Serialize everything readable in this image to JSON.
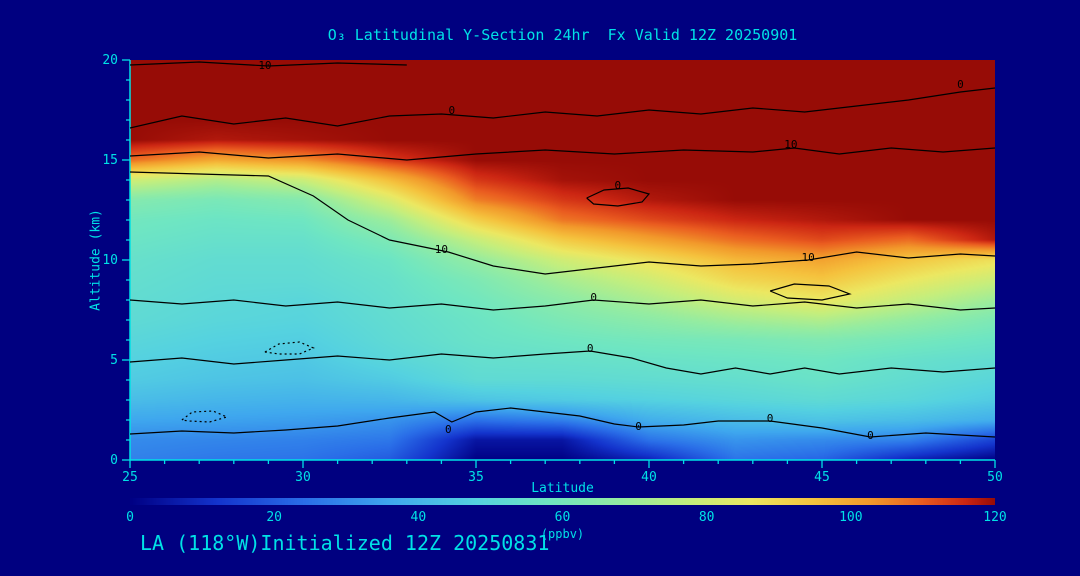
{
  "title": "O₃ Latitudinal Y-Section 24hr  Fx Valid 12Z 20250901",
  "footer": "LA (118°W)Initialized 12Z 20250831",
  "colors": {
    "background": "#000080",
    "axis_text": "#00E1E6",
    "contour_line": "#000000"
  },
  "chart_data": {
    "type": "heatmap",
    "title": "O₃ Latitudinal Y-Section 24hr  Fx Valid 12Z 20250901",
    "xlabel": "Latitude",
    "ylabel": "Altitude (km)",
    "units": "ppbv",
    "x_range": [
      25,
      50
    ],
    "y_range": [
      0,
      20
    ],
    "x_ticks": [
      25,
      30,
      35,
      40,
      45,
      50
    ],
    "y_ticks": [
      0,
      5,
      10,
      15,
      20
    ],
    "lats": [
      25,
      27.5,
      30,
      32.5,
      35,
      37.5,
      40,
      42.5,
      45,
      47.5,
      50
    ],
    "alts": [
      0,
      1,
      2,
      3,
      4,
      5,
      6,
      7,
      8,
      9,
      10,
      11,
      12,
      13,
      14,
      15,
      16,
      17,
      18,
      19,
      20
    ],
    "values": [
      [
        28,
        26,
        25,
        20,
        0,
        0,
        8,
        25,
        22,
        8,
        0
      ],
      [
        30,
        29,
        28,
        26,
        5,
        5,
        25,
        32,
        30,
        28,
        15
      ],
      [
        36,
        35,
        34,
        32,
        25,
        28,
        38,
        42,
        44,
        42,
        38
      ],
      [
        42,
        40,
        39,
        40,
        44,
        46,
        48,
        50,
        52,
        50,
        46
      ],
      [
        46,
        44,
        43,
        46,
        52,
        52,
        53,
        54,
        56,
        53,
        50
      ],
      [
        48,
        46,
        45,
        50,
        54,
        55,
        56,
        57,
        58,
        55,
        53
      ],
      [
        50,
        48,
        47,
        52,
        56,
        58,
        60,
        61,
        63,
        60,
        57
      ],
      [
        52,
        50,
        49,
        53,
        57,
        62,
        66,
        71,
        74,
        68,
        62
      ],
      [
        53,
        51,
        50,
        54,
        59,
        66,
        73,
        81,
        86,
        78,
        70
      ],
      [
        54,
        52,
        52,
        55,
        62,
        72,
        80,
        90,
        94,
        86,
        79
      ],
      [
        55,
        53,
        53,
        57,
        68,
        80,
        88,
        97,
        101,
        94,
        88
      ],
      [
        57,
        55,
        55,
        62,
        78,
        93,
        101,
        108,
        112,
        108,
        118
      ],
      [
        59,
        57,
        58,
        70,
        92,
        107,
        112,
        116,
        118,
        120,
        120
      ],
      [
        64,
        61,
        64,
        82,
        106,
        114,
        118,
        120,
        120,
        120,
        120
      ],
      [
        80,
        74,
        79,
        96,
        114,
        119,
        120,
        120,
        120,
        120,
        120
      ],
      [
        108,
        100,
        104,
        114,
        120,
        120,
        120,
        120,
        120,
        120,
        120
      ],
      [
        120,
        118,
        119,
        120,
        120,
        120,
        120,
        120,
        120,
        120,
        120
      ],
      [
        120,
        120,
        120,
        120,
        120,
        120,
        120,
        120,
        120,
        120,
        120
      ],
      [
        120,
        120,
        120,
        120,
        120,
        120,
        120,
        120,
        120,
        120,
        120
      ],
      [
        120,
        120,
        120,
        120,
        120,
        120,
        120,
        120,
        120,
        120,
        120
      ],
      [
        120,
        120,
        120,
        120,
        120,
        120,
        120,
        120,
        120,
        120,
        120
      ]
    ],
    "colorbar": {
      "ticks": [
        0,
        20,
        40,
        60,
        80,
        100,
        120
      ],
      "label": "(ppbv)",
      "range": [
        0,
        120
      ]
    },
    "colormap": [
      {
        "v": 0,
        "c": "#000084"
      },
      {
        "v": 12,
        "c": "#1434cd"
      },
      {
        "v": 24,
        "c": "#2a6ee8"
      },
      {
        "v": 36,
        "c": "#3fa8ee"
      },
      {
        "v": 48,
        "c": "#55d2e0"
      },
      {
        "v": 58,
        "c": "#6fe6c2"
      },
      {
        "v": 68,
        "c": "#94eca2"
      },
      {
        "v": 78,
        "c": "#c6ee7c"
      },
      {
        "v": 86,
        "c": "#ece862"
      },
      {
        "v": 95,
        "c": "#f5c33e"
      },
      {
        "v": 103,
        "c": "#f2992b"
      },
      {
        "v": 110,
        "c": "#ea5c20"
      },
      {
        "v": 116,
        "c": "#cc2613"
      },
      {
        "v": 120,
        "c": "#970c06"
      }
    ],
    "contours": [
      {
        "level": "0",
        "dashed": false,
        "points": [
          [
            25,
            16.6
          ],
          [
            26.5,
            17.2
          ],
          [
            28,
            16.8
          ],
          [
            29.5,
            17.1
          ],
          [
            31,
            16.7
          ],
          [
            32.5,
            17.2
          ],
          [
            34,
            17.3
          ],
          [
            35.5,
            17.1
          ],
          [
            37,
            17.4
          ],
          [
            38.5,
            17.2
          ],
          [
            40,
            17.5
          ],
          [
            41.5,
            17.3
          ],
          [
            43,
            17.6
          ],
          [
            44.5,
            17.4
          ],
          [
            46,
            17.7
          ],
          [
            47.5,
            18.0
          ],
          [
            49,
            18.4
          ],
          [
            50,
            18.6
          ]
        ],
        "label_positions": [
          [
            34.3,
            17.5
          ],
          [
            49.0,
            18.8
          ]
        ]
      },
      {
        "level": "10",
        "dashed": false,
        "points": [
          [
            25,
            19.75
          ],
          [
            27,
            19.9
          ],
          [
            29,
            19.7
          ],
          [
            31,
            19.85
          ],
          [
            33,
            19.75
          ]
        ],
        "label_positions": [
          [
            28.9,
            19.75
          ]
        ]
      },
      {
        "level": "10",
        "dashed": false,
        "points": [
          [
            25,
            15.2
          ],
          [
            27,
            15.4
          ],
          [
            29,
            15.1
          ],
          [
            31,
            15.3
          ],
          [
            33,
            15.0
          ],
          [
            35,
            15.3
          ],
          [
            37,
            15.5
          ],
          [
            39,
            15.3
          ],
          [
            41,
            15.5
          ],
          [
            43,
            15.4
          ],
          [
            44.2,
            15.6
          ],
          [
            45.5,
            15.3
          ],
          [
            47,
            15.6
          ],
          [
            48.5,
            15.4
          ],
          [
            50,
            15.6
          ]
        ],
        "label_positions": [
          [
            44.1,
            15.8
          ]
        ]
      },
      {
        "level": "10",
        "dashed": false,
        "points": [
          [
            25,
            14.4
          ],
          [
            27,
            14.3
          ],
          [
            29,
            14.2
          ],
          [
            30.3,
            13.2
          ],
          [
            31.3,
            12.0
          ],
          [
            32.5,
            11.0
          ],
          [
            34.2,
            10.4
          ],
          [
            35.5,
            9.7
          ],
          [
            37,
            9.3
          ],
          [
            38.5,
            9.6
          ],
          [
            40,
            9.9
          ],
          [
            41.5,
            9.7
          ],
          [
            43,
            9.8
          ],
          [
            44.6,
            10.0
          ],
          [
            46,
            10.4
          ],
          [
            47.5,
            10.1
          ],
          [
            49,
            10.3
          ],
          [
            50,
            10.2
          ]
        ],
        "label_positions": [
          [
            34.0,
            10.55
          ],
          [
            44.6,
            10.15
          ]
        ]
      },
      {
        "level": "0",
        "dashed": false,
        "points": [
          [
            25,
            8.0
          ],
          [
            26.5,
            7.8
          ],
          [
            28,
            8.0
          ],
          [
            29.5,
            7.7
          ],
          [
            31,
            7.9
          ],
          [
            32.5,
            7.6
          ],
          [
            34,
            7.8
          ],
          [
            35.5,
            7.5
          ],
          [
            37,
            7.7
          ],
          [
            38.4,
            8.0
          ],
          [
            40,
            7.8
          ],
          [
            41.5,
            8.0
          ],
          [
            43,
            7.7
          ],
          [
            44.5,
            7.9
          ],
          [
            46,
            7.6
          ],
          [
            47.5,
            7.8
          ],
          [
            49,
            7.5
          ],
          [
            50,
            7.6
          ]
        ],
        "label_positions": [
          [
            38.4,
            8.15
          ]
        ]
      },
      {
        "level": "0",
        "dashed": false,
        "points": [
          [
            43.5,
            8.45
          ],
          [
            44.2,
            8.8
          ],
          [
            45.2,
            8.7
          ],
          [
            45.8,
            8.3
          ],
          [
            45.0,
            8.0
          ],
          [
            44.0,
            8.1
          ],
          [
            43.5,
            8.45
          ]
        ],
        "label_positions": []
      },
      {
        "level": "0",
        "dashed": false,
        "points": [
          [
            25,
            4.9
          ],
          [
            26.5,
            5.1
          ],
          [
            28,
            4.8
          ],
          [
            29.5,
            5.0
          ],
          [
            31,
            5.2
          ],
          [
            32.5,
            5.0
          ],
          [
            34,
            5.3
          ],
          [
            35.5,
            5.1
          ],
          [
            37,
            5.3
          ],
          [
            38.3,
            5.45
          ],
          [
            39.5,
            5.1
          ],
          [
            40.5,
            4.6
          ],
          [
            41.5,
            4.3
          ],
          [
            42.5,
            4.6
          ],
          [
            43.5,
            4.3
          ],
          [
            44.5,
            4.6
          ],
          [
            45.5,
            4.3
          ],
          [
            47,
            4.6
          ],
          [
            48.5,
            4.4
          ],
          [
            50,
            4.6
          ]
        ],
        "label_positions": [
          [
            38.3,
            5.6
          ]
        ]
      },
      {
        "level": "0",
        "dashed": false,
        "points": [
          [
            25,
            1.3
          ],
          [
            26.5,
            1.45
          ],
          [
            28,
            1.35
          ],
          [
            29.5,
            1.5
          ],
          [
            31,
            1.7
          ],
          [
            32.5,
            2.1
          ],
          [
            33.8,
            2.4
          ],
          [
            34.3,
            1.9
          ],
          [
            35,
            2.4
          ],
          [
            36,
            2.6
          ],
          [
            37,
            2.4
          ],
          [
            38,
            2.2
          ],
          [
            39,
            1.8
          ],
          [
            39.7,
            1.65
          ],
          [
            41,
            1.75
          ],
          [
            42,
            1.95
          ],
          [
            43.5,
            1.95
          ],
          [
            45,
            1.6
          ],
          [
            46.4,
            1.15
          ],
          [
            48,
            1.35
          ],
          [
            50,
            1.15
          ]
        ],
        "label_positions": [
          [
            34.2,
            1.55
          ],
          [
            39.7,
            1.7
          ],
          [
            43.5,
            2.1
          ],
          [
            46.4,
            1.25
          ]
        ]
      },
      {
        "level": "0",
        "dashed": false,
        "points": [
          [
            38.2,
            13.1
          ],
          [
            38.7,
            13.5
          ],
          [
            39.4,
            13.6
          ],
          [
            40.0,
            13.3
          ],
          [
            39.8,
            12.9
          ],
          [
            39.1,
            12.7
          ],
          [
            38.4,
            12.8
          ],
          [
            38.2,
            13.1
          ]
        ],
        "label_positions": [
          [
            39.1,
            13.75
          ]
        ]
      },
      {
        "level": "-10",
        "dashed": true,
        "points": [
          [
            28.9,
            5.4
          ],
          [
            29.3,
            5.8
          ],
          [
            29.9,
            5.9
          ],
          [
            30.3,
            5.6
          ],
          [
            29.9,
            5.3
          ],
          [
            29.3,
            5.3
          ],
          [
            28.9,
            5.4
          ]
        ],
        "label_positions": []
      },
      {
        "level": "-10",
        "dashed": true,
        "points": [
          [
            26.5,
            2.0
          ],
          [
            26.8,
            2.4
          ],
          [
            27.4,
            2.45
          ],
          [
            27.8,
            2.15
          ],
          [
            27.3,
            1.9
          ],
          [
            26.7,
            1.95
          ],
          [
            26.5,
            2.0
          ]
        ],
        "label_positions": []
      }
    ]
  }
}
